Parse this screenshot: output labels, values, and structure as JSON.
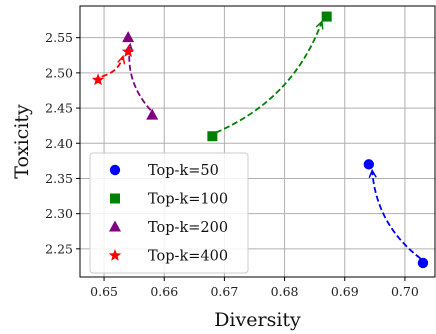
{
  "chart_data": {
    "type": "scatter",
    "title": "",
    "xlabel": "Diversity",
    "ylabel": "Toxicity",
    "xlim": [
      0.646,
      0.705
    ],
    "ylim": [
      2.21,
      2.595
    ],
    "xticks": [
      0.65,
      0.66,
      0.67,
      0.68,
      0.69,
      0.7
    ],
    "xtick_labels": [
      "0.65",
      "0.66",
      "0.67",
      "0.68",
      "0.69",
      "0.70"
    ],
    "yticks": [
      2.25,
      2.3,
      2.35,
      2.4,
      2.45,
      2.5,
      2.55
    ],
    "ytick_labels": [
      "2.25",
      "2.30",
      "2.35",
      "2.40",
      "2.45",
      "2.50",
      "2.55"
    ],
    "grid": true,
    "legend_position": "bottom-left",
    "series": [
      {
        "name": "Top-k=50",
        "marker": "circle",
        "color": "#0000ff",
        "points": [
          {
            "x": 0.703,
            "y": 2.23
          },
          {
            "x": 0.694,
            "y": 2.37
          }
        ],
        "arrow": {
          "from": 0,
          "to": 1,
          "bend": "left"
        }
      },
      {
        "name": "Top-k=100",
        "marker": "square",
        "color": "#008000",
        "points": [
          {
            "x": 0.668,
            "y": 2.41
          },
          {
            "x": 0.687,
            "y": 2.58
          }
        ],
        "arrow": {
          "from": 0,
          "to": 1,
          "bend": "right"
        }
      },
      {
        "name": "Top-k=200",
        "marker": "triangle",
        "color": "#800080",
        "points": [
          {
            "x": 0.658,
            "y": 2.44
          },
          {
            "x": 0.654,
            "y": 2.55
          }
        ],
        "arrow": {
          "from": 0,
          "to": 1,
          "bend": "left"
        }
      },
      {
        "name": "Top-k=400",
        "marker": "star",
        "color": "#ff0000",
        "points": [
          {
            "x": 0.649,
            "y": 2.49
          },
          {
            "x": 0.654,
            "y": 2.53
          }
        ],
        "arrow": {
          "from": 0,
          "to": 1,
          "bend": "right"
        }
      }
    ]
  }
}
